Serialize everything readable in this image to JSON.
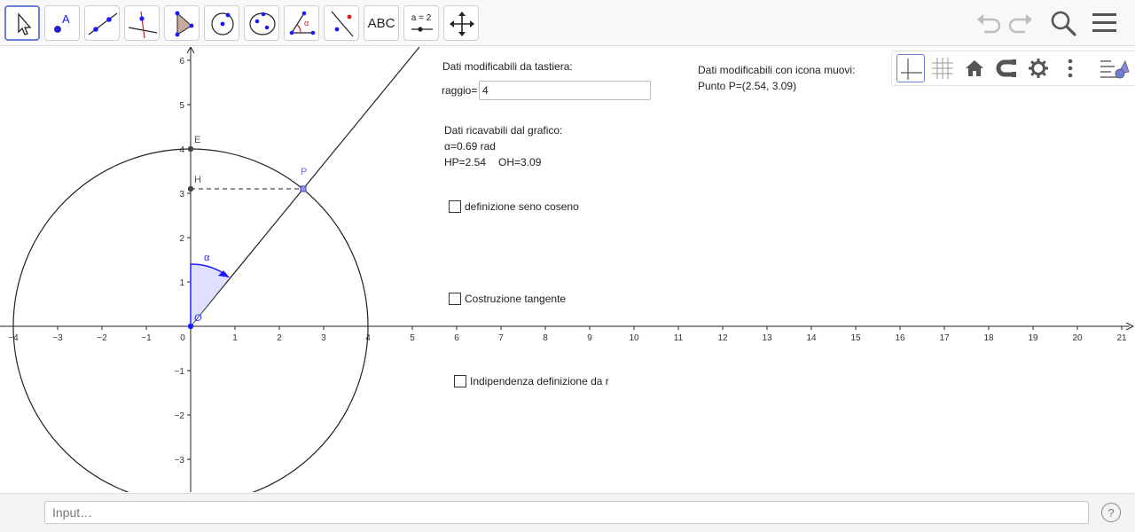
{
  "toolbar": {
    "tools": [
      {
        "name": "move-tool"
      },
      {
        "name": "point-tool"
      },
      {
        "name": "line-tool"
      },
      {
        "name": "perpendicular-line-tool"
      },
      {
        "name": "polygon-tool"
      },
      {
        "name": "circle-tool"
      },
      {
        "name": "ellipse-tool"
      },
      {
        "name": "angle-tool",
        "label": "α"
      },
      {
        "name": "reflect-tool"
      },
      {
        "name": "text-tool",
        "label": "ABC"
      },
      {
        "name": "slider-tool",
        "label": "a = 2"
      },
      {
        "name": "move-graphics-tool"
      }
    ],
    "right": [
      "undo-icon",
      "redo-icon",
      "search-icon",
      "menu-icon"
    ]
  },
  "graphics": {
    "x_ticks": [
      "−4",
      "−3",
      "−2",
      "−1",
      "0",
      "1",
      "2",
      "3",
      "4",
      "5",
      "6",
      "7",
      "8",
      "9",
      "10",
      "11",
      "12",
      "13",
      "14",
      "15",
      "16",
      "17",
      "18",
      "19",
      "20",
      "21"
    ],
    "y_ticks": [
      "6",
      "5",
      "4",
      "3",
      "2",
      "1",
      "−1",
      "−2",
      "−3"
    ],
    "points": {
      "E": "E",
      "H": "H",
      "P": "P",
      "O": "O"
    },
    "angle_label": "α",
    "text_keyboard_title": "Dati modificabili da tastiera:",
    "raggio_label": "raggio=",
    "raggio_value": "4",
    "text_move_title": "Dati modificabili con icona muovi:",
    "text_point_p": "Punto P=(2.54, 3.09)",
    "text_graph_title": "Dati ricavabili dal grafico:",
    "text_alpha": "α=0.69 rad",
    "text_hp": "HP=2.54",
    "text_oh": "OH=3.09",
    "checkbox_1": "definizione seno coseno",
    "checkbox_2": "Costruzione tangente",
    "checkbox_3": "Indipendenza definizione da r",
    "colors": {
      "point_p": "#7070d0",
      "angle": "#1a1aff",
      "angle_fill": "#dfe0ff",
      "axes": "#222222"
    }
  },
  "stylebar": {
    "buttons": [
      "axes-toggle-icon",
      "grid-toggle-icon",
      "home-icon",
      "magnet-icon",
      "gear-icon",
      "more-icon",
      "stylebar-toggle-icon"
    ]
  },
  "input_bar": {
    "placeholder": "Input…",
    "help": "?"
  }
}
